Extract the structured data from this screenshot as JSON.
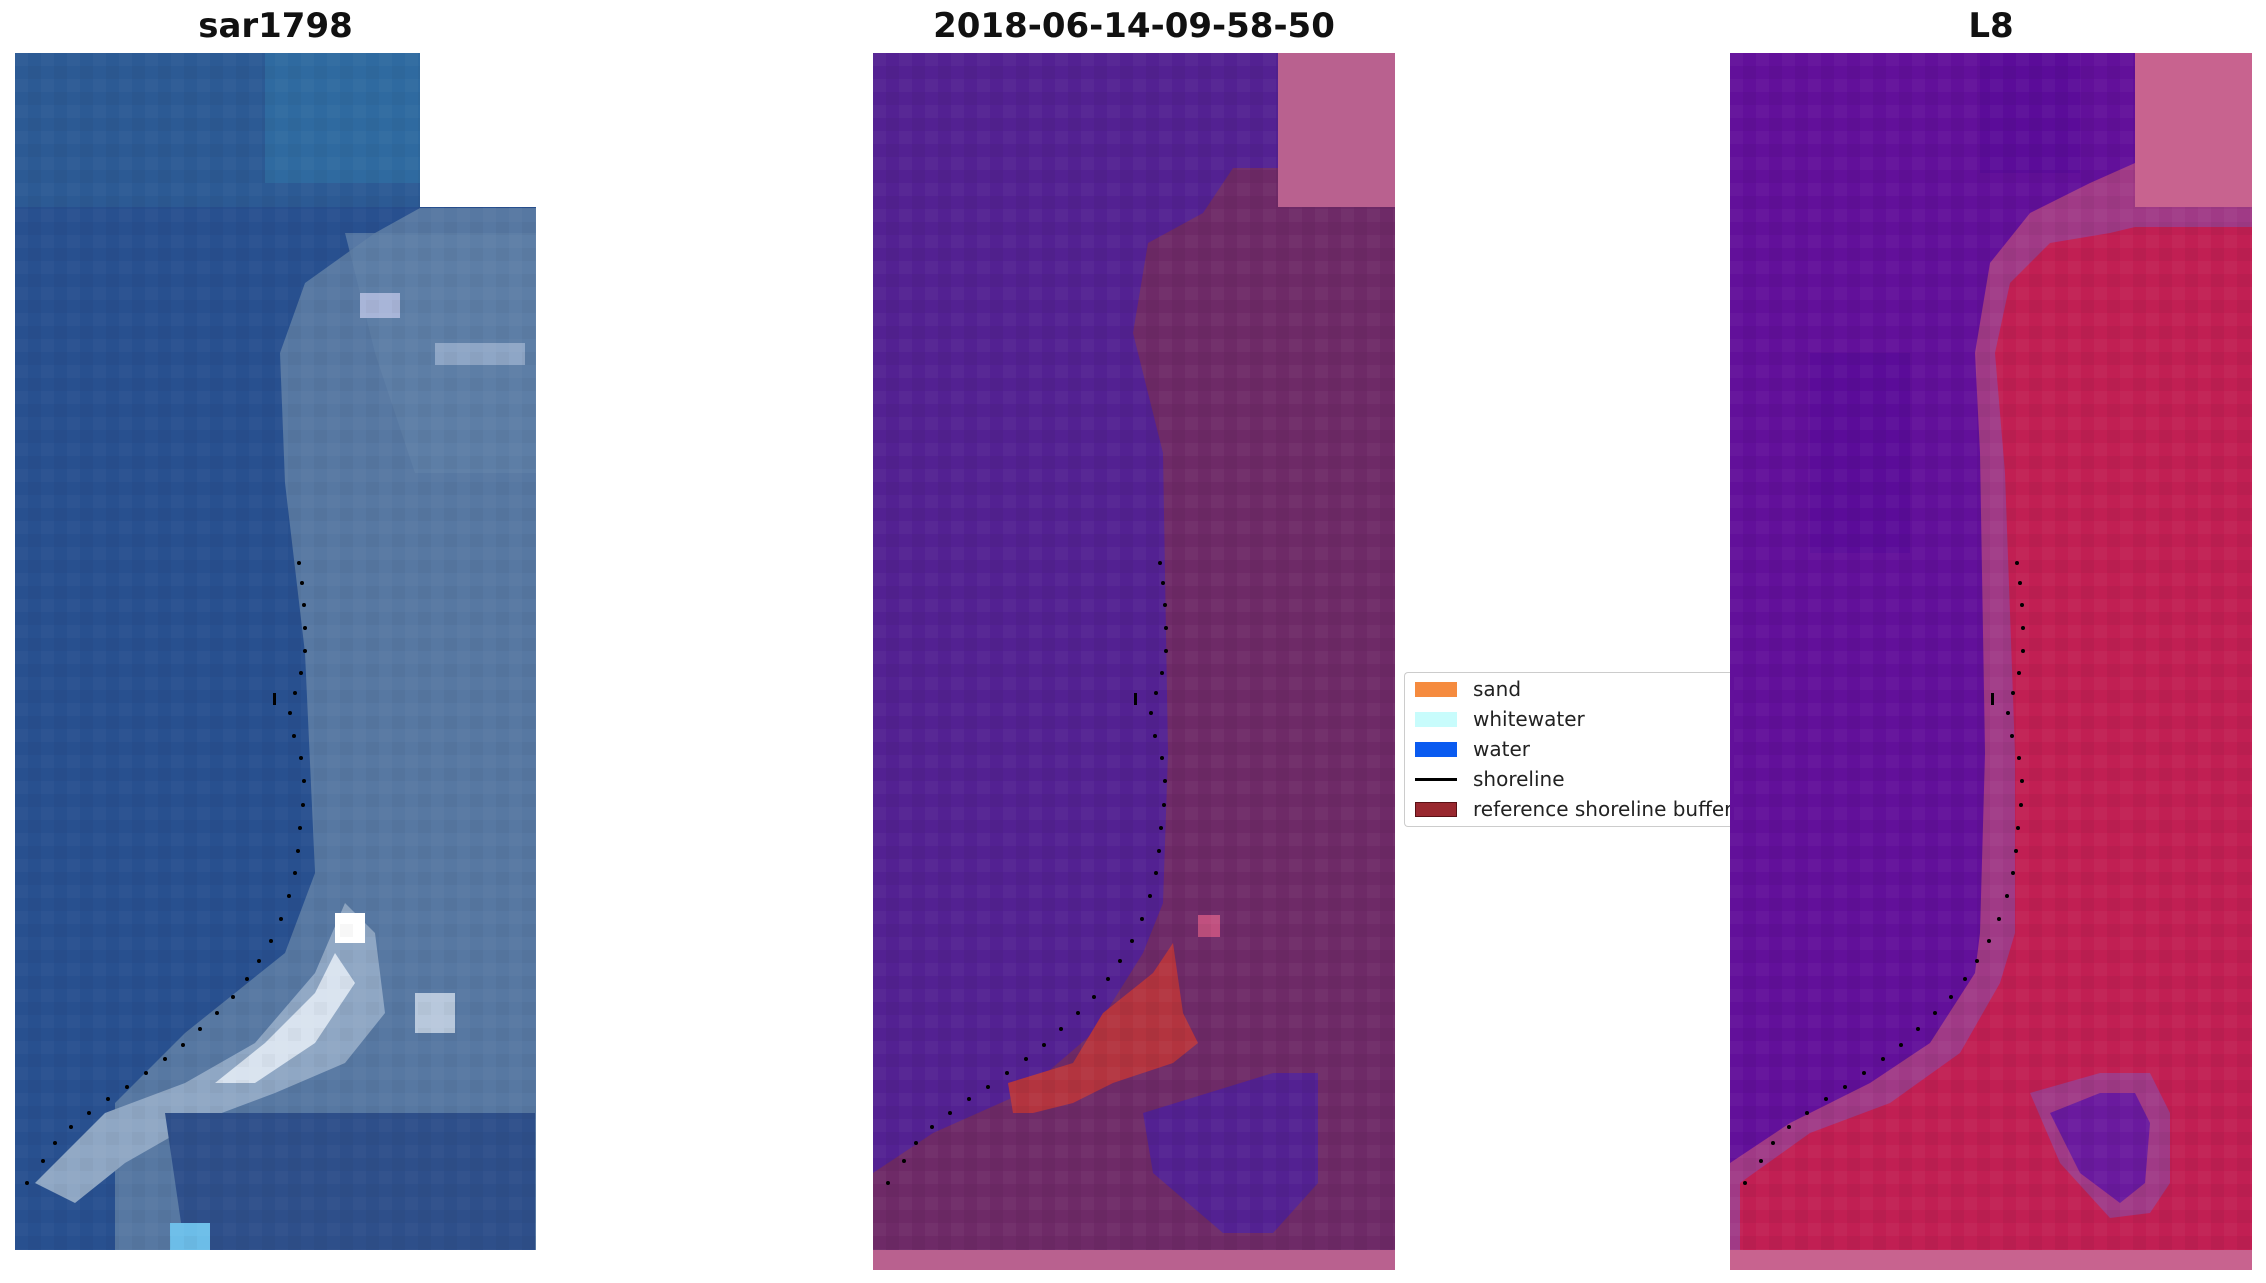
{
  "panels": [
    {
      "title": "sar1798",
      "description": "satellite RGB image"
    },
    {
      "title": "2018-06-14-09-58-50",
      "description": "classified image"
    },
    {
      "title": "L8",
      "description": "MNDWI index image"
    }
  ],
  "legend": {
    "items": [
      {
        "label": "sand",
        "color": "#f58b3f"
      },
      {
        "label": "whitewater",
        "color": "#c8fcfc"
      },
      {
        "label": "water",
        "color": "#0a5bf0"
      },
      {
        "label": "shoreline",
        "color": "#000000"
      },
      {
        "label": "reference shoreline buffer",
        "color": "#99282f"
      }
    ]
  },
  "colors": {
    "sar_water": "#2a5290",
    "sar_land": "#5c7aa5",
    "class_water": "#532192",
    "class_land": "#6e2a67",
    "class_nodata": "#b9618f",
    "class_buffer": "#b3343f",
    "l8_water": "#62109a",
    "l8_land": "#c11f53",
    "l8_nodata": "#c8638f"
  }
}
